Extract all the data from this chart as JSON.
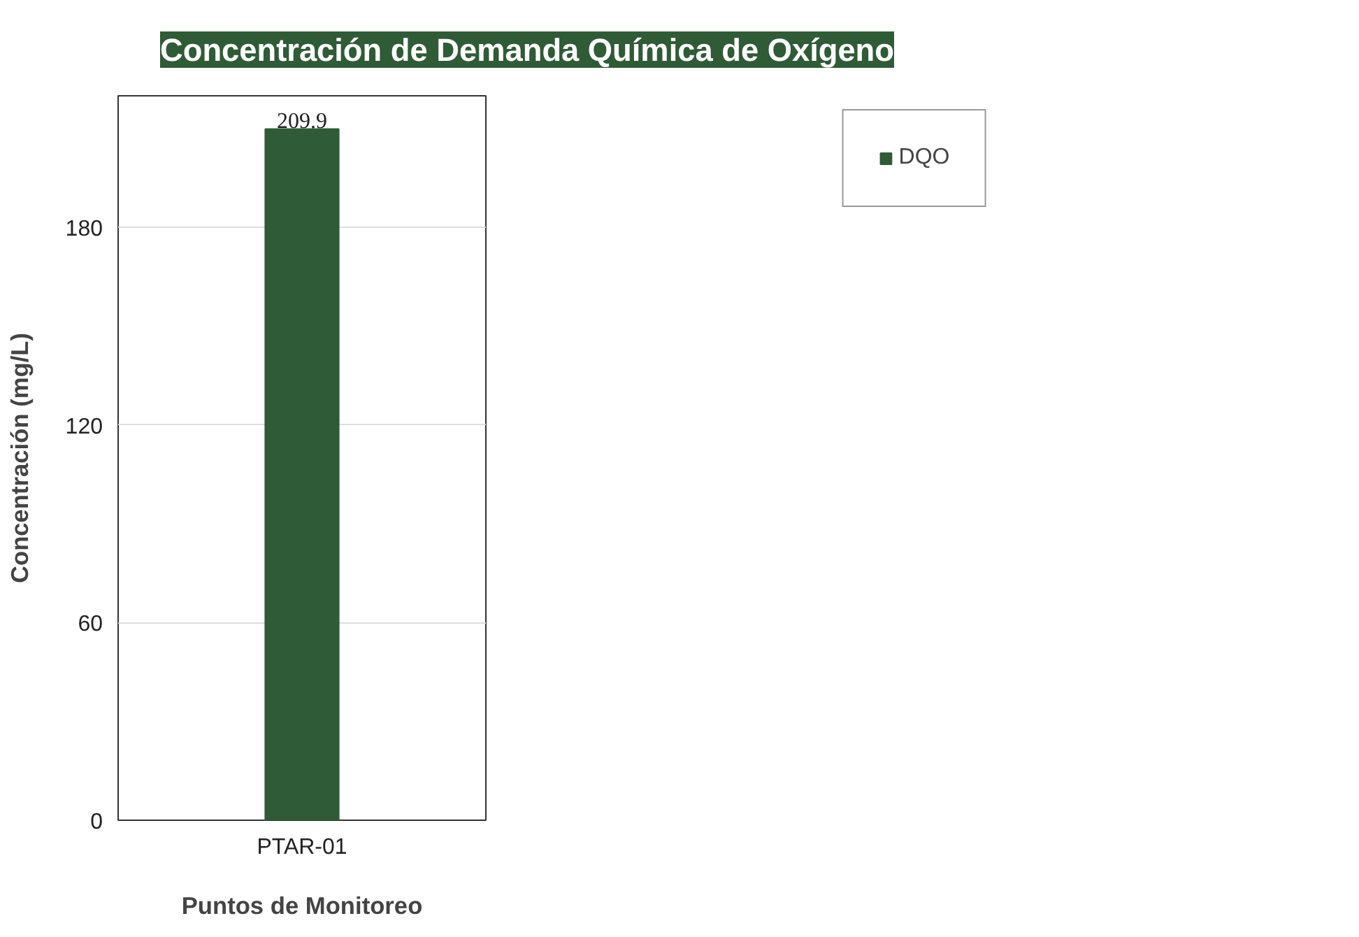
{
  "chart_data": {
    "type": "bar",
    "title": "Concentración de Demanda Química de Oxígeno",
    "xlabel": "Puntos de Monitoreo",
    "ylabel": "Concentración (mg/L)",
    "categories": [
      "PTAR-01"
    ],
    "series": [
      {
        "name": "DQO",
        "color": "#2f5b37",
        "values": [
          209.9
        ]
      }
    ],
    "ylim": [
      0,
      220
    ],
    "yticks": [
      0,
      60,
      120,
      180
    ],
    "grid": "y",
    "legend": "top right",
    "data_labels": true
  }
}
